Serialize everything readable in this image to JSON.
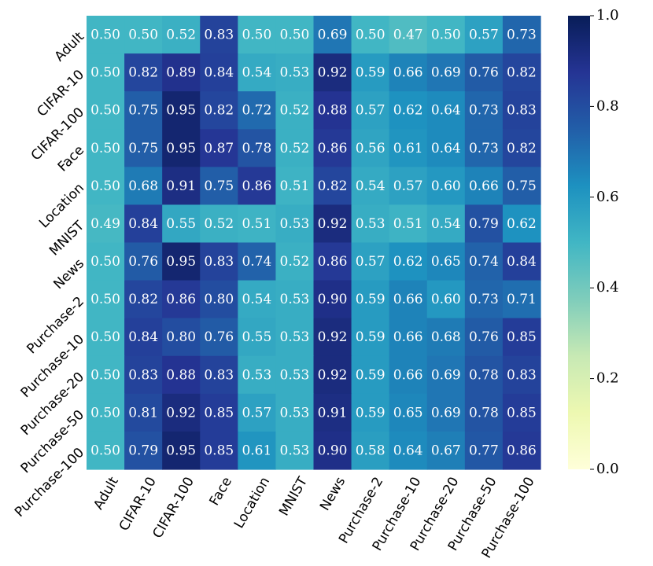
{
  "chart_data": {
    "type": "heatmap",
    "row_labels": [
      "Adult",
      "CIFAR-10",
      "CIFAR-100",
      "Face",
      "Location",
      "MNIST",
      "News",
      "Purchase-2",
      "Purchase-10",
      "Purchase-20",
      "Purchase-50",
      "Purchase-100"
    ],
    "col_labels": [
      "Adult",
      "CIFAR-10",
      "CIFAR-100",
      "Face",
      "Location",
      "MNIST",
      "News",
      "Purchase-2",
      "Purchase-10",
      "Purchase-20",
      "Purchase-50",
      "Purchase-100"
    ],
    "values": [
      [
        0.5,
        0.5,
        0.52,
        0.83,
        0.5,
        0.5,
        0.69,
        0.5,
        0.47,
        0.5,
        0.57,
        0.73
      ],
      [
        0.5,
        0.82,
        0.89,
        0.84,
        0.54,
        0.53,
        0.92,
        0.59,
        0.66,
        0.69,
        0.76,
        0.82
      ],
      [
        0.5,
        0.75,
        0.95,
        0.82,
        0.72,
        0.52,
        0.88,
        0.57,
        0.62,
        0.64,
        0.73,
        0.83
      ],
      [
        0.5,
        0.75,
        0.95,
        0.87,
        0.78,
        0.52,
        0.86,
        0.56,
        0.61,
        0.64,
        0.73,
        0.82
      ],
      [
        0.5,
        0.68,
        0.91,
        0.75,
        0.86,
        0.51,
        0.82,
        0.54,
        0.57,
        0.6,
        0.66,
        0.75
      ],
      [
        0.49,
        0.84,
        0.55,
        0.52,
        0.51,
        0.53,
        0.92,
        0.53,
        0.51,
        0.54,
        0.79,
        0.62
      ],
      [
        0.5,
        0.76,
        0.95,
        0.83,
        0.74,
        0.52,
        0.86,
        0.57,
        0.62,
        0.65,
        0.74,
        0.84
      ],
      [
        0.5,
        0.82,
        0.86,
        0.8,
        0.54,
        0.53,
        0.9,
        0.59,
        0.66,
        0.6,
        0.73,
        0.71
      ],
      [
        0.5,
        0.84,
        0.8,
        0.76,
        0.55,
        0.53,
        0.92,
        0.59,
        0.66,
        0.68,
        0.76,
        0.85
      ],
      [
        0.5,
        0.83,
        0.88,
        0.83,
        0.53,
        0.53,
        0.92,
        0.59,
        0.66,
        0.69,
        0.78,
        0.83
      ],
      [
        0.5,
        0.81,
        0.92,
        0.85,
        0.57,
        0.53,
        0.91,
        0.59,
        0.65,
        0.69,
        0.78,
        0.85
      ],
      [
        0.5,
        0.79,
        0.95,
        0.85,
        0.61,
        0.53,
        0.9,
        0.58,
        0.64,
        0.67,
        0.77,
        0.86
      ]
    ],
    "value_range": [
      0.0,
      1.0
    ],
    "colorbar": {
      "colormap": "YlGnBu",
      "ticks": [
        "0.0",
        "0.2",
        "0.4",
        "0.6",
        "0.8",
        "1.0"
      ]
    },
    "annotations": true,
    "grid": false
  }
}
